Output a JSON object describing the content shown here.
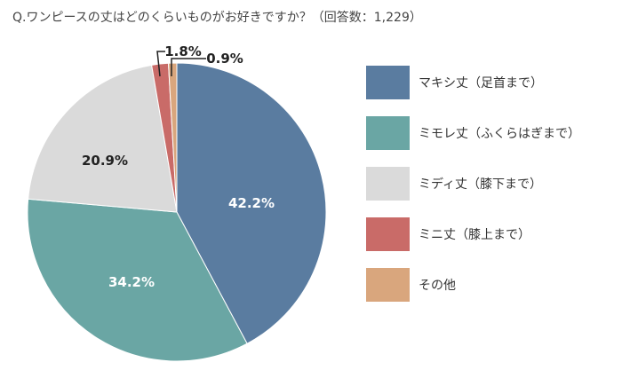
{
  "chart_data": {
    "type": "pie",
    "title": "Q.ワンピースの丈はどのくらいものがお好きですか？（回答数：1,229）",
    "categories": [
      "マキシ丈（足首まで）",
      "ミモレ丈（ふくらはぎまで）",
      "ミディ丈（膝下まで）",
      "ミニ丈（膝上まで）",
      "その他"
    ],
    "values": [
      42.2,
      34.2,
      20.9,
      1.8,
      0.9
    ],
    "labels": [
      "42.2%",
      "34.2%",
      "20.9%",
      "1.8%",
      "0.9%"
    ],
    "colors": [
      "#5a7ca0",
      "#6aa6a4",
      "#dadada",
      "#c96b68",
      "#d9a67d"
    ],
    "label_colors": [
      "#ffffff",
      "#ffffff",
      "#222222",
      "#222222",
      "#222222"
    ],
    "legend_position": "right",
    "start": "top",
    "direction": "clockwise"
  }
}
